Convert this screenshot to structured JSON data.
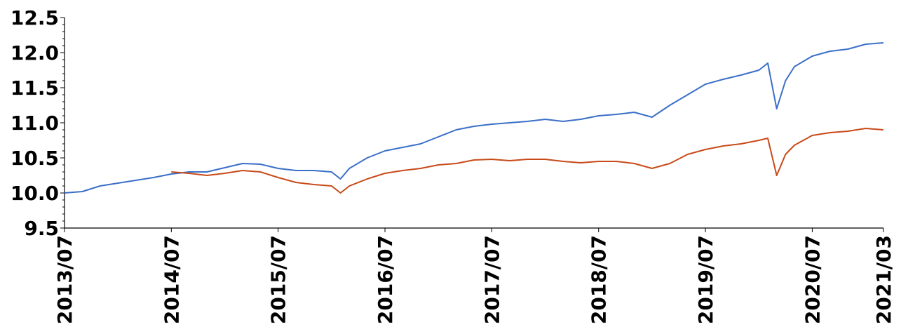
{
  "chart_data": {
    "type": "line",
    "title": "",
    "xlabel": "",
    "ylabel": "",
    "ylim": [
      9.5,
      12.5
    ],
    "xlim": [
      "2013-07",
      "2021-03"
    ],
    "y_ticks": [
      "9.5",
      "10.0",
      "10.5",
      "11.0",
      "11.5",
      "12.0",
      "12.5"
    ],
    "x_ticks": [
      "2013/07",
      "2014/07",
      "2015/07",
      "2016/07",
      "2017/07",
      "2018/07",
      "2019/07",
      "2020/07",
      "2021/03"
    ],
    "grid": false,
    "legend": "none",
    "series": [
      {
        "color": "#3a6fc8",
        "points": [
          [
            "2013-07",
            10.0
          ],
          [
            "2013-09",
            10.02
          ],
          [
            "2013-11",
            10.1
          ],
          [
            "2014-01",
            10.14
          ],
          [
            "2014-03",
            10.18
          ],
          [
            "2014-05",
            10.22
          ],
          [
            "2014-07",
            10.27
          ],
          [
            "2014-09",
            10.3
          ],
          [
            "2014-11",
            10.3
          ],
          [
            "2015-01",
            10.36
          ],
          [
            "2015-03",
            10.42
          ],
          [
            "2015-05",
            10.41
          ],
          [
            "2015-07",
            10.35
          ],
          [
            "2015-09",
            10.32
          ],
          [
            "2015-11",
            10.32
          ],
          [
            "2016-01",
            10.3
          ],
          [
            "2016-02",
            10.2
          ],
          [
            "2016-03",
            10.35
          ],
          [
            "2016-05",
            10.5
          ],
          [
            "2016-07",
            10.6
          ],
          [
            "2016-09",
            10.65
          ],
          [
            "2016-11",
            10.7
          ],
          [
            "2017-01",
            10.8
          ],
          [
            "2017-03",
            10.9
          ],
          [
            "2017-05",
            10.95
          ],
          [
            "2017-07",
            10.98
          ],
          [
            "2017-09",
            11.0
          ],
          [
            "2017-11",
            11.02
          ],
          [
            "2018-01",
            11.05
          ],
          [
            "2018-03",
            11.02
          ],
          [
            "2018-05",
            11.05
          ],
          [
            "2018-07",
            11.1
          ],
          [
            "2018-09",
            11.12
          ],
          [
            "2018-11",
            11.15
          ],
          [
            "2019-01",
            11.08
          ],
          [
            "2019-03",
            11.25
          ],
          [
            "2019-05",
            11.4
          ],
          [
            "2019-07",
            11.55
          ],
          [
            "2019-09",
            11.62
          ],
          [
            "2019-11",
            11.68
          ],
          [
            "2020-01",
            11.75
          ],
          [
            "2020-02",
            11.85
          ],
          [
            "2020-03",
            11.2
          ],
          [
            "2020-04",
            11.6
          ],
          [
            "2020-05",
            11.8
          ],
          [
            "2020-07",
            11.95
          ],
          [
            "2020-09",
            12.02
          ],
          [
            "2020-11",
            12.05
          ],
          [
            "2021-01",
            12.12
          ],
          [
            "2021-03",
            12.14
          ]
        ]
      },
      {
        "color": "#c84a1a",
        "points": [
          [
            "2014-07",
            10.3
          ],
          [
            "2014-09",
            10.28
          ],
          [
            "2014-11",
            10.25
          ],
          [
            "2015-01",
            10.28
          ],
          [
            "2015-03",
            10.32
          ],
          [
            "2015-05",
            10.3
          ],
          [
            "2015-07",
            10.22
          ],
          [
            "2015-09",
            10.15
          ],
          [
            "2015-11",
            10.12
          ],
          [
            "2016-01",
            10.1
          ],
          [
            "2016-02",
            10.0
          ],
          [
            "2016-03",
            10.1
          ],
          [
            "2016-05",
            10.2
          ],
          [
            "2016-07",
            10.28
          ],
          [
            "2016-09",
            10.32
          ],
          [
            "2016-11",
            10.35
          ],
          [
            "2017-01",
            10.4
          ],
          [
            "2017-03",
            10.42
          ],
          [
            "2017-05",
            10.47
          ],
          [
            "2017-07",
            10.48
          ],
          [
            "2017-09",
            10.46
          ],
          [
            "2017-11",
            10.48
          ],
          [
            "2018-01",
            10.48
          ],
          [
            "2018-03",
            10.45
          ],
          [
            "2018-05",
            10.43
          ],
          [
            "2018-07",
            10.45
          ],
          [
            "2018-09",
            10.45
          ],
          [
            "2018-11",
            10.42
          ],
          [
            "2019-01",
            10.35
          ],
          [
            "2019-03",
            10.42
          ],
          [
            "2019-05",
            10.55
          ],
          [
            "2019-07",
            10.62
          ],
          [
            "2019-09",
            10.67
          ],
          [
            "2019-11",
            10.7
          ],
          [
            "2020-01",
            10.75
          ],
          [
            "2020-02",
            10.78
          ],
          [
            "2020-03",
            10.25
          ],
          [
            "2020-04",
            10.55
          ],
          [
            "2020-05",
            10.68
          ],
          [
            "2020-07",
            10.82
          ],
          [
            "2020-09",
            10.86
          ],
          [
            "2020-11",
            10.88
          ],
          [
            "2021-01",
            10.92
          ],
          [
            "2021-03",
            10.9
          ]
        ]
      }
    ]
  }
}
